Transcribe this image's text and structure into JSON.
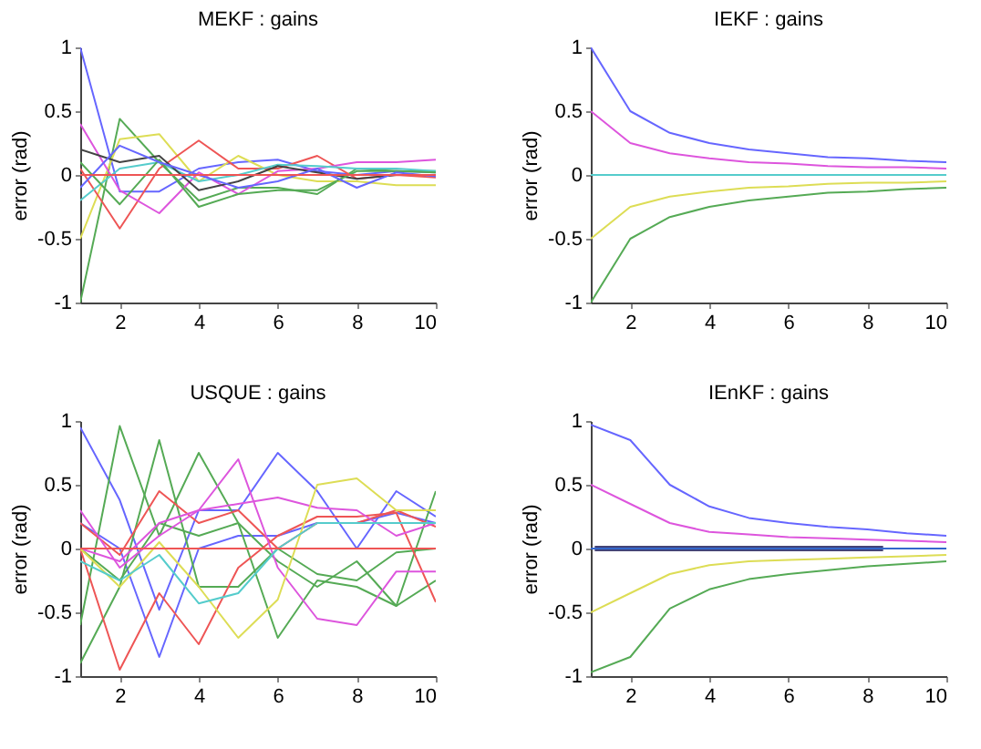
{
  "chart_data": [
    {
      "type": "line",
      "title": "MEKF : gains",
      "ylabel": "error (rad)",
      "x": [
        1,
        2,
        3,
        4,
        5,
        6,
        7,
        8,
        9,
        10
      ],
      "xlim": [
        1,
        10
      ],
      "ylim": [
        -1,
        1
      ],
      "xticks": [
        2,
        4,
        6,
        8,
        10
      ],
      "yticks": [
        -1,
        -0.5,
        0,
        0.5,
        1
      ],
      "grid": false,
      "line_style": "solid",
      "series": [
        {
          "color": "#6666ff",
          "values": [
            1,
            -0.13,
            -0.13,
            0.05,
            0.1,
            0.12,
            0.03,
            0.0,
            0.03,
            0.02
          ]
        },
        {
          "color": "#55aa55",
          "values": [
            -1,
            0.44,
            0.1,
            -0.2,
            -0.1,
            -0.1,
            -0.15,
            0.05,
            0.03,
            0.03
          ]
        },
        {
          "color": "#dddd55",
          "values": [
            -0.5,
            0.28,
            0.32,
            -0.05,
            0.15,
            0.0,
            -0.05,
            -0.05,
            -0.08,
            -0.08
          ]
        },
        {
          "color": "#ee5555",
          "values": [
            0.05,
            -0.42,
            0.05,
            0.27,
            0.05,
            0.05,
            0.15,
            -0.03,
            0.0,
            -0.02
          ]
        },
        {
          "color": "#dd55dd",
          "values": [
            0.4,
            -0.12,
            -0.3,
            0.02,
            -0.15,
            0.03,
            0.05,
            0.1,
            0.1,
            0.12
          ]
        },
        {
          "color": "#55cccc",
          "values": [
            -0.2,
            0.05,
            0.1,
            -0.05,
            0.0,
            0.08,
            0.07,
            0.05,
            0.05,
            0.03
          ]
        },
        {
          "color": "#444444",
          "values": [
            0.2,
            0.1,
            0.15,
            -0.12,
            -0.05,
            0.07,
            0.02,
            -0.03,
            0.0,
            0.0
          ]
        },
        {
          "color": "#55aa55",
          "values": [
            0.1,
            -0.23,
            0.12,
            -0.25,
            -0.15,
            -0.12,
            -0.12,
            0.03,
            0.03,
            0.02
          ]
        },
        {
          "color": "#6666ff",
          "values": [
            -0.1,
            0.23,
            0.1,
            0.0,
            -0.1,
            -0.05,
            0.05,
            -0.1,
            0.02,
            -0.01
          ]
        },
        {
          "color": "#ee5555",
          "values": [
            0,
            0,
            0,
            0,
            0,
            0,
            0,
            0,
            0,
            0
          ]
        }
      ]
    },
    {
      "type": "line",
      "title": "IEKF : gains",
      "ylabel": "error (rad)",
      "x": [
        1,
        2,
        3,
        4,
        5,
        6,
        7,
        8,
        9,
        10
      ],
      "xlim": [
        1,
        10
      ],
      "ylim": [
        -1,
        1
      ],
      "xticks": [
        2,
        4,
        6,
        8,
        10
      ],
      "yticks": [
        -1,
        -0.5,
        0,
        0.5,
        1
      ],
      "grid": false,
      "line_style": "solid",
      "series": [
        {
          "color": "#6666ff",
          "values": [
            1,
            0.5,
            0.33,
            0.25,
            0.2,
            0.17,
            0.14,
            0.13,
            0.11,
            0.1
          ]
        },
        {
          "color": "#dd55dd",
          "values": [
            0.5,
            0.25,
            0.17,
            0.13,
            0.1,
            0.09,
            0.07,
            0.06,
            0.06,
            0.05
          ]
        },
        {
          "color": "#55cccc",
          "values": [
            0,
            0,
            0,
            0,
            0,
            0,
            0,
            0,
            0,
            0
          ]
        },
        {
          "color": "#dddd55",
          "values": [
            -0.5,
            -0.25,
            -0.17,
            -0.13,
            -0.1,
            -0.09,
            -0.07,
            -0.06,
            -0.06,
            -0.05
          ]
        },
        {
          "color": "#55aa55",
          "values": [
            -1,
            -0.5,
            -0.33,
            -0.25,
            -0.2,
            -0.17,
            -0.14,
            -0.13,
            -0.11,
            -0.1
          ]
        }
      ]
    },
    {
      "type": "line",
      "title": "USQUE : gains",
      "ylabel": "error (rad)",
      "x": [
        1,
        2,
        3,
        4,
        5,
        6,
        7,
        8,
        9,
        10
      ],
      "xlim": [
        1,
        10
      ],
      "ylim": [
        -1,
        1
      ],
      "xticks": [
        2,
        4,
        6,
        8,
        10
      ],
      "yticks": [
        -1,
        -0.5,
        0,
        0.5,
        1
      ],
      "grid": false,
      "line_style": "solid",
      "series": [
        {
          "color": "#6666ff",
          "values": [
            0.95,
            0.38,
            -0.48,
            0.3,
            0.3,
            0.75,
            0.45,
            0.0,
            0.45,
            0.25
          ]
        },
        {
          "color": "#6666ff",
          "values": [
            0.2,
            0.0,
            -0.85,
            0.0,
            0.1,
            0.1,
            0.2,
            0.2,
            0.28,
            0.2
          ]
        },
        {
          "color": "#55aa55",
          "values": [
            -0.6,
            0.96,
            0.1,
            0.75,
            0.2,
            -0.7,
            -0.25,
            -0.3,
            -0.45,
            0.45
          ]
        },
        {
          "color": "#55aa55",
          "values": [
            -0.9,
            -0.3,
            0.85,
            -0.3,
            -0.3,
            0.0,
            -0.2,
            -0.25,
            -0.03,
            0.0
          ]
        },
        {
          "color": "#55aa55",
          "values": [
            0.0,
            -0.25,
            0.2,
            0.1,
            0.2,
            -0.1,
            -0.3,
            -0.1,
            -0.45,
            -0.25
          ]
        },
        {
          "color": "#ee5555",
          "values": [
            0.0,
            -0.95,
            -0.35,
            -0.75,
            -0.15,
            0.1,
            0.25,
            0.25,
            0.28,
            -0.42
          ]
        },
        {
          "color": "#ee5555",
          "values": [
            0.2,
            -0.05,
            0.45,
            0.2,
            0.3,
            0.0,
            0.2,
            0.2,
            0.3,
            0.17
          ]
        },
        {
          "color": "#dd55dd",
          "values": [
            0.3,
            -0.15,
            0.1,
            0.3,
            0.7,
            -0.15,
            -0.55,
            -0.6,
            -0.18,
            -0.18
          ]
        },
        {
          "color": "#dd55dd",
          "values": [
            0.0,
            -0.1,
            0.2,
            0.3,
            0.35,
            0.4,
            0.32,
            0.3,
            0.1,
            0.2
          ]
        },
        {
          "color": "#dddd55",
          "values": [
            0.0,
            -0.3,
            0.05,
            -0.3,
            -0.7,
            -0.4,
            0.5,
            0.55,
            0.3,
            0.3
          ]
        },
        {
          "color": "#55cccc",
          "values": [
            -0.1,
            -0.25,
            -0.05,
            -0.43,
            -0.35,
            0.0,
            0.2,
            0.2,
            0.2,
            0.2
          ]
        },
        {
          "color": "#ee5555",
          "values": [
            0,
            0,
            0,
            0,
            0,
            0,
            0,
            0,
            0,
            0
          ]
        }
      ]
    },
    {
      "type": "line",
      "title": "IEnKF : gains",
      "ylabel": "error (rad)",
      "x": [
        1,
        2,
        3,
        4,
        5,
        6,
        7,
        8,
        9,
        10
      ],
      "xlim": [
        1,
        10
      ],
      "ylim": [
        -1,
        1
      ],
      "xticks": [
        2,
        4,
        6,
        8,
        10
      ],
      "yticks": [
        -1,
        -0.5,
        0,
        0.5,
        1
      ],
      "grid": false,
      "line_style": "solid",
      "series": [
        {
          "color": "#6666ff",
          "values": [
            0.97,
            0.85,
            0.5,
            0.33,
            0.24,
            0.2,
            0.17,
            0.15,
            0.12,
            0.1
          ]
        },
        {
          "color": "#dd55dd",
          "values": [
            0.5,
            0.35,
            0.2,
            0.13,
            0.11,
            0.09,
            0.08,
            0.07,
            0.06,
            0.05
          ]
        },
        {
          "color": "#444477",
          "x": [
            1.1,
            8.4
          ],
          "values": [
            0,
            0
          ]
        },
        {
          "color": "#3366cc",
          "values": [
            0,
            0,
            0,
            0,
            0,
            0,
            0,
            0,
            0,
            0
          ]
        },
        {
          "color": "#dddd55",
          "values": [
            -0.5,
            -0.35,
            -0.2,
            -0.13,
            -0.1,
            -0.09,
            -0.08,
            -0.07,
            -0.06,
            -0.05
          ]
        },
        {
          "color": "#55aa55",
          "values": [
            -0.97,
            -0.85,
            -0.47,
            -0.32,
            -0.24,
            -0.2,
            -0.17,
            -0.14,
            -0.12,
            -0.1
          ]
        }
      ]
    }
  ]
}
